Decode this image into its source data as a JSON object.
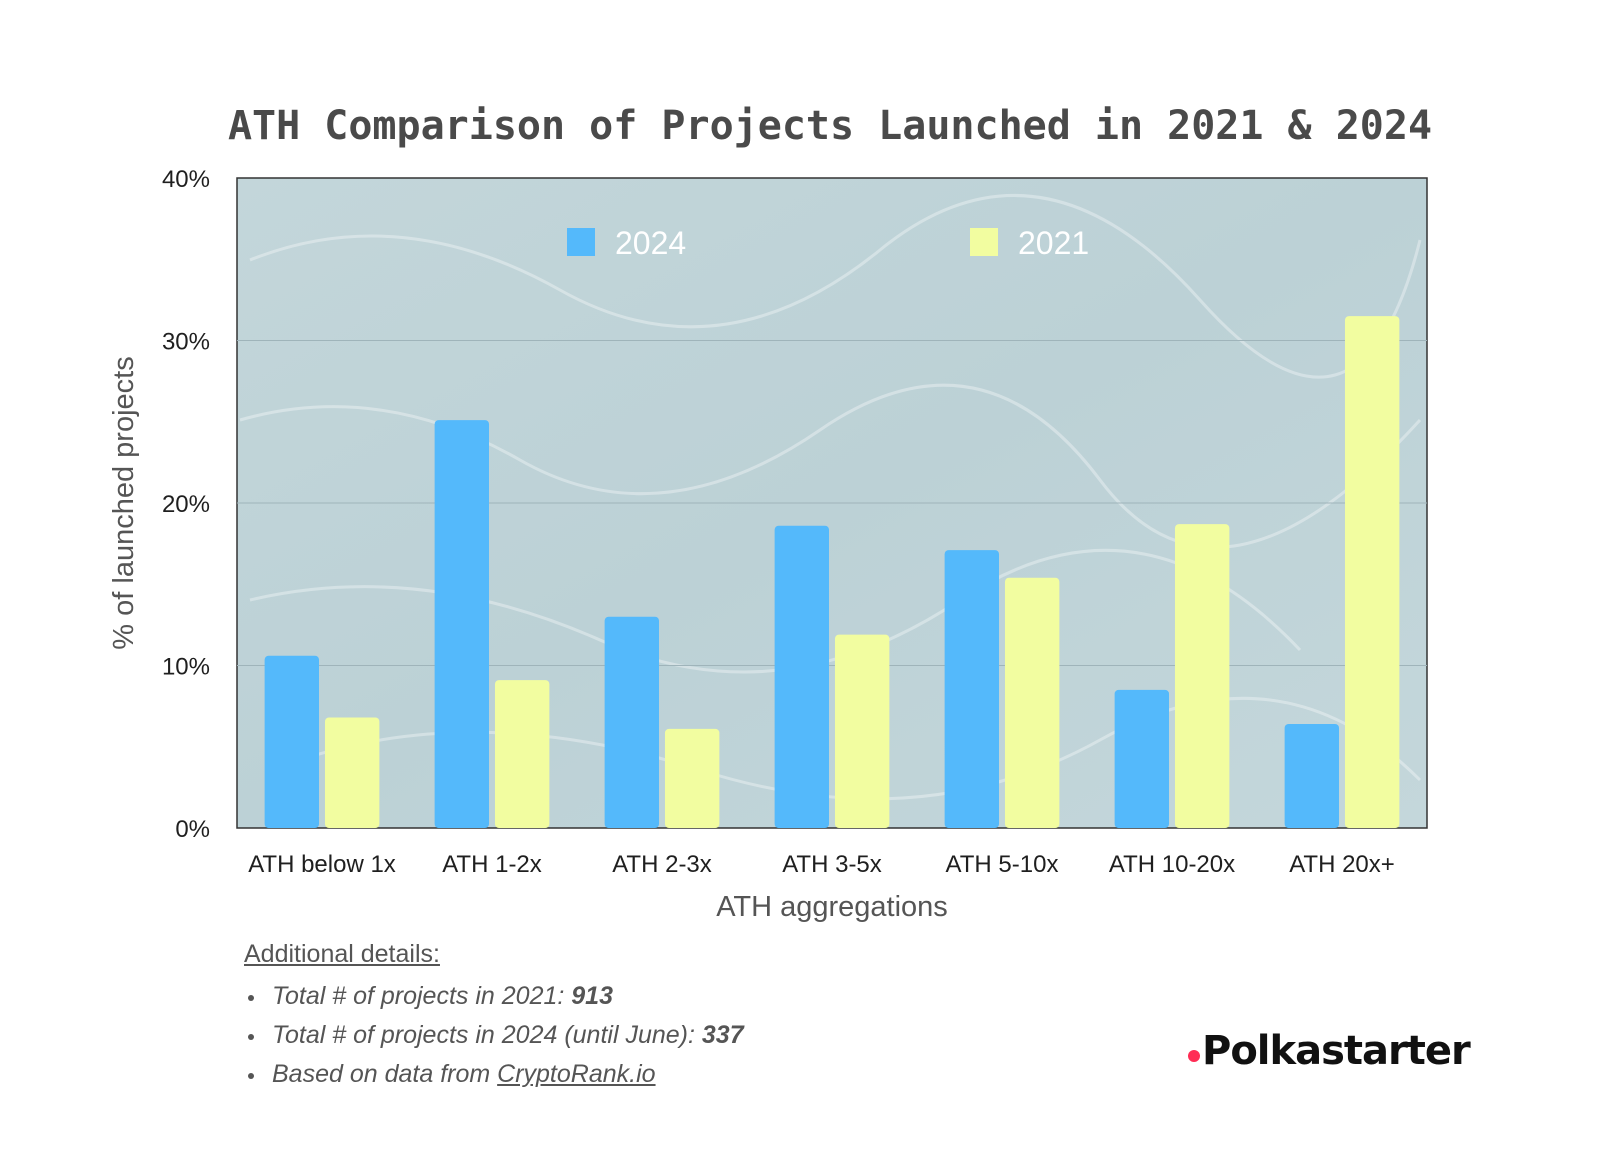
{
  "chart_data": {
    "type": "bar",
    "title": "ATH Comparison of Projects Launched in 2021 & 2024",
    "xlabel": "ATH aggregations",
    "ylabel": "% of launched projects",
    "ylim": [
      0,
      40
    ],
    "y_ticks": [
      "0%",
      "10%",
      "20%",
      "30%",
      "40%"
    ],
    "grid": true,
    "legend_position": "top-center",
    "categories": [
      "ATH below 1x",
      "ATH 1-2x",
      "ATH 2-3x",
      "ATH 3-5x",
      "ATH 5-10x",
      "ATH 10-20x",
      "ATH 20x+"
    ],
    "series": [
      {
        "name": "2024",
        "color": "#54b9fb",
        "values": [
          10.6,
          25.1,
          13.0,
          18.6,
          17.1,
          8.5,
          6.4
        ]
      },
      {
        "name": "2021",
        "color": "#f2fda0",
        "values": [
          6.8,
          9.1,
          6.1,
          11.9,
          15.4,
          18.7,
          31.5
        ]
      }
    ]
  },
  "details": {
    "heading": "Additional details:",
    "item1_label": "Total # of projects in 2021: ",
    "item1_value": "913",
    "item2_label": "Total # of projects in 2024 (until June): ",
    "item2_value": "337",
    "item3_label": "Based on data from ",
    "item3_link": "CryptoRank.io"
  },
  "brand": {
    "name": "Polkastarter",
    "dot_color": "#ff2d55"
  }
}
